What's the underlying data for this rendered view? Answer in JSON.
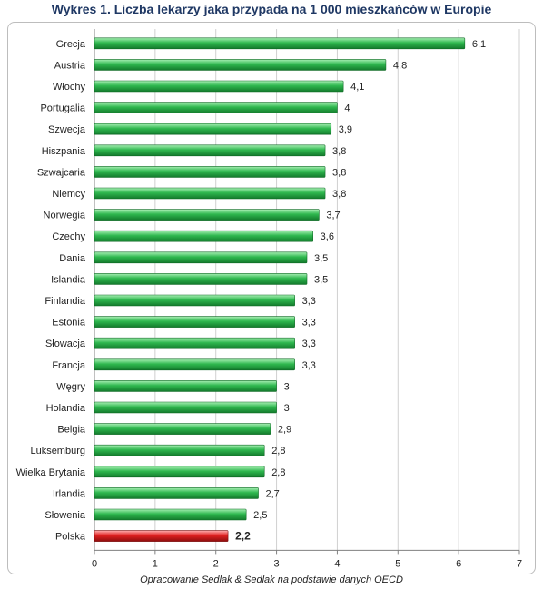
{
  "title": "Wykres 1. Liczba lekarzy jaka przypada na 1 000 mieszkańców w Europie",
  "caption": "Opracowanie Sedlak & Sedlak na podstawie danych OECD",
  "colors": {
    "bar_default": "#2fb84f",
    "bar_highlight": "#e02020",
    "grid": "#d0d0d0"
  },
  "chart_data": {
    "type": "bar",
    "orientation": "horizontal",
    "title": "Wykres 1. Liczba lekarzy jaka przypada na 1 000 mieszkańców w Europie",
    "categories": [
      "Grecja",
      "Austria",
      "Włochy",
      "Portugalia",
      "Szwecja",
      "Hiszpania",
      "Szwajcaria",
      "Niemcy",
      "Norwegia",
      "Czechy",
      "Dania",
      "Islandia",
      "Finlandia",
      "Estonia",
      "Słowacja",
      "Francja",
      "Węgry",
      "Holandia",
      "Belgia",
      "Luksemburg",
      "Wielka Brytania",
      "Irlandia",
      "Słowenia",
      "Polska"
    ],
    "values": [
      6.1,
      4.8,
      4.1,
      4,
      3.9,
      3.8,
      3.8,
      3.8,
      3.7,
      3.6,
      3.5,
      3.5,
      3.3,
      3.3,
      3.3,
      3.3,
      3,
      3,
      2.9,
      2.8,
      2.8,
      2.7,
      2.5,
      2.2
    ],
    "value_labels": [
      "6,1",
      "4,8",
      "4,1",
      "4",
      "3,9",
      "3,8",
      "3,8",
      "3,8",
      "3,7",
      "3,6",
      "3,5",
      "3,5",
      "3,3",
      "3,3",
      "3,3",
      "3,3",
      "3",
      "3",
      "2,9",
      "2,8",
      "2,8",
      "2,7",
      "2,5",
      "2,2"
    ],
    "highlight": "Polska",
    "xlim": [
      0,
      7
    ],
    "xticks": [
      "0",
      "1",
      "2",
      "3",
      "4",
      "5",
      "6",
      "7"
    ],
    "grid": true,
    "legend": "none"
  }
}
